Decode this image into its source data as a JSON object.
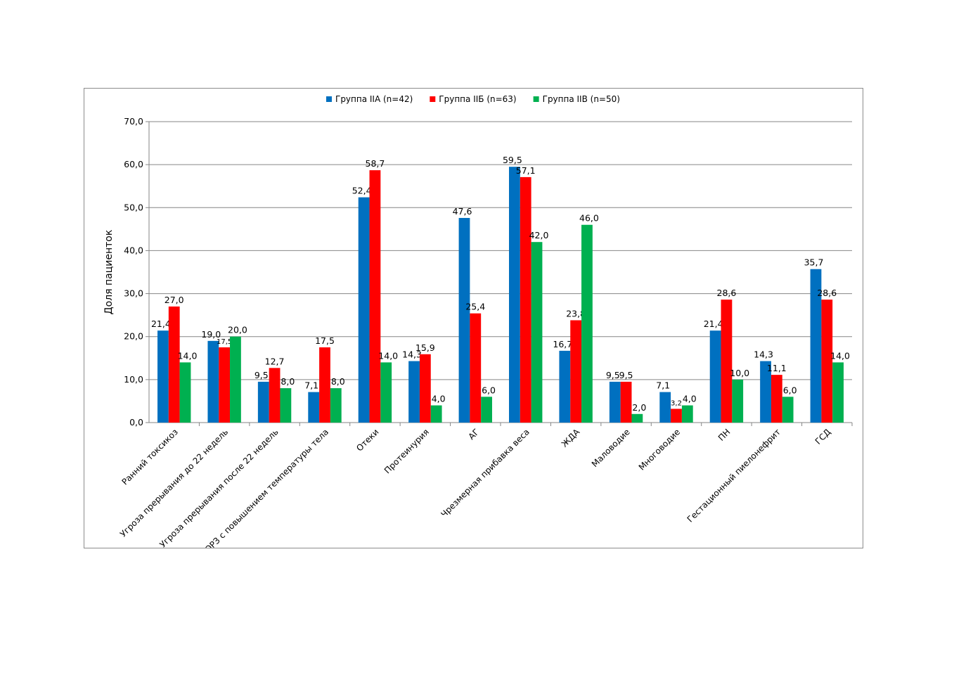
{
  "chart_data": {
    "type": "bar",
    "ylabel": "Доля пациенток",
    "ylim": [
      0,
      70
    ],
    "yticks": [
      "0,0",
      "10,0",
      "20,0",
      "30,0",
      "40,0",
      "50,0",
      "60,0",
      "70,0"
    ],
    "ytick_values": [
      0,
      10,
      20,
      30,
      40,
      50,
      60,
      70
    ],
    "grid": true,
    "legend_position": "top",
    "categories": [
      "Ранний токсикоз",
      "Угроза прерывания до 22 недель",
      "Угроза прерывания после 22 недель",
      "ОРЗ с повышением температуры тела",
      "Отеки",
      "Протеинурия",
      "АГ",
      "Чрезмерная прибавка веса",
      "ЖДА",
      "Маловодие",
      "Многоводие",
      "ПН",
      "Гестационный пиелонефрит",
      "ГСД"
    ],
    "series": [
      {
        "name": "Группа IIА (n=42)",
        "color": "#0070C0",
        "values": [
          21.4,
          19.0,
          9.5,
          7.1,
          52.4,
          14.3,
          47.6,
          59.5,
          16.7,
          9.5,
          7.1,
          21.4,
          14.3,
          35.7
        ],
        "labels": [
          "21,4",
          "19,0",
          "9,5",
          "7,1",
          "52,4",
          "14,3",
          "47,6",
          "59,5",
          "16,7",
          "9,5",
          "7,1",
          "21,4",
          "14,3",
          "35,7"
        ]
      },
      {
        "name": "Группа IIБ (n=63)",
        "color": "#FF0000",
        "values": [
          27.0,
          17.5,
          12.7,
          17.5,
          58.7,
          15.9,
          25.4,
          57.1,
          23.8,
          9.5,
          3.2,
          28.6,
          11.1,
          28.6
        ],
        "labels": [
          "27,0",
          "17,5",
          "12,7",
          "17,5",
          "58,7",
          "15,9",
          "25,4",
          "57,1",
          "23,8",
          "9,5",
          "3,2",
          "28,6",
          "11,1",
          "28,6"
        ]
      },
      {
        "name": "Группа IIВ (n=50)",
        "color": "#00B050",
        "values": [
          14.0,
          20.0,
          8.0,
          8.0,
          14.0,
          4.0,
          6.0,
          42.0,
          46.0,
          2.0,
          4.0,
          10.0,
          6.0,
          14.0
        ],
        "labels": [
          "14,0",
          "20,0",
          "8,0",
          "8,0",
          "14,0",
          "4,0",
          "6,0",
          "42,0",
          "46,0",
          "2,0",
          "4,0",
          "10,0",
          "6,0",
          "14,0"
        ]
      }
    ]
  }
}
